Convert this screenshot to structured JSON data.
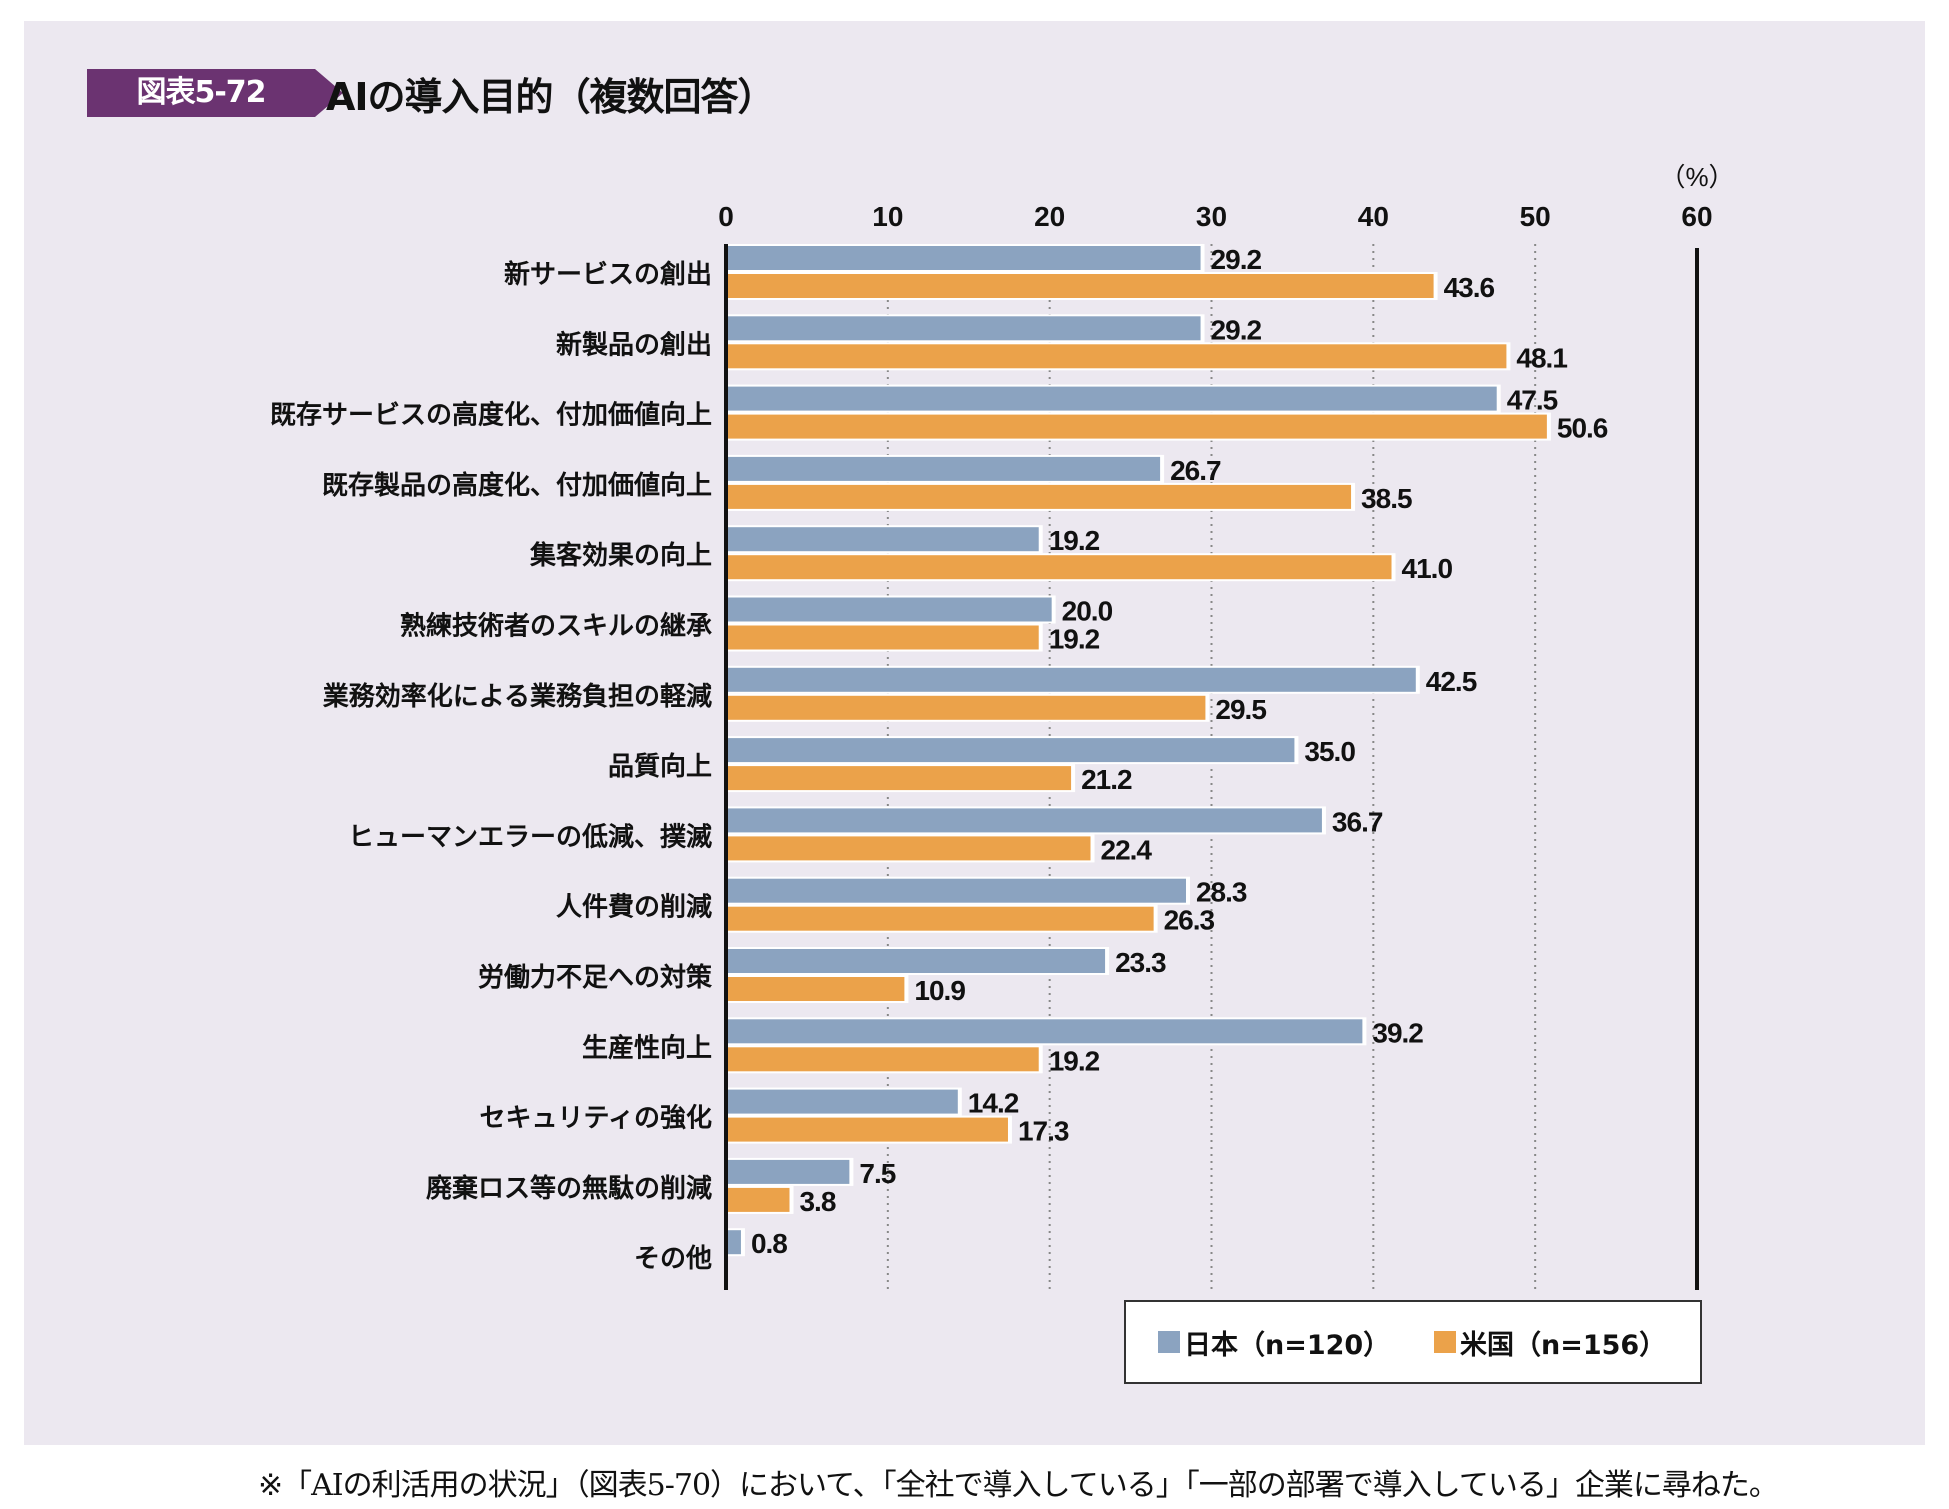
{
  "header": {
    "badge": "図表5-72",
    "title": "AIの導入目的（複数回答）"
  },
  "colors": {
    "japan": "#8ba3c0",
    "us": "#eba24a",
    "badge": "#6b3371",
    "panel_bg": "#ece8f0"
  },
  "footnote": "※「AIの利活用の状況」（図表5-70）において、「全社で導入している」「一部の部署で導入している」企業に尋ねた。",
  "chart_data": {
    "type": "bar",
    "orientation": "horizontal",
    "title": "AIの導入目的（複数回答）",
    "xlabel": "",
    "ylabel": "",
    "unit_label": "（%）",
    "xlim": [
      0,
      60
    ],
    "xticks": [
      "0",
      "10",
      "20",
      "30",
      "40",
      "50",
      "60"
    ],
    "grid": "dotted vertical",
    "legend_position": "bottom-right",
    "categories": [
      "新サービスの創出",
      "新製品の創出",
      "既存サービスの高度化、付加価値向上",
      "既存製品の高度化、付加価値向上",
      "集客効果の向上",
      "熟練技術者のスキルの継承",
      "業務効率化による業務負担の軽減",
      "品質向上",
      "ヒューマンエラーの低減、撲滅",
      "人件費の削減",
      "労働力不足への対策",
      "生産性向上",
      "セキュリティの強化",
      "廃棄ロス等の無駄の削減",
      "その他"
    ],
    "series": [
      {
        "name": "日本（n=120）",
        "key": "japan",
        "values": [
          29.2,
          29.2,
          47.5,
          26.7,
          19.2,
          20.0,
          42.5,
          35.0,
          36.7,
          28.3,
          23.3,
          39.2,
          14.2,
          7.5,
          0.8
        ],
        "labels": [
          "29.2",
          "29.2",
          "47.5",
          "26.7",
          "19.2",
          "20.0",
          "42.5",
          "35.0",
          "36.7",
          "28.3",
          "23.3",
          "39.2",
          "14.2",
          "7.5",
          "0.8"
        ]
      },
      {
        "name": "米国（n=156）",
        "key": "us",
        "values": [
          43.6,
          48.1,
          50.6,
          38.5,
          41.0,
          19.2,
          29.5,
          21.2,
          22.4,
          26.3,
          10.9,
          19.2,
          17.3,
          3.8,
          null
        ],
        "labels": [
          "43.6",
          "48.1",
          "50.6",
          "38.5",
          "41.0",
          "19.2",
          "29.5",
          "21.2",
          "22.4",
          "26.3",
          "10.9",
          "19.2",
          "17.3",
          "3.8",
          null
        ]
      }
    ]
  }
}
